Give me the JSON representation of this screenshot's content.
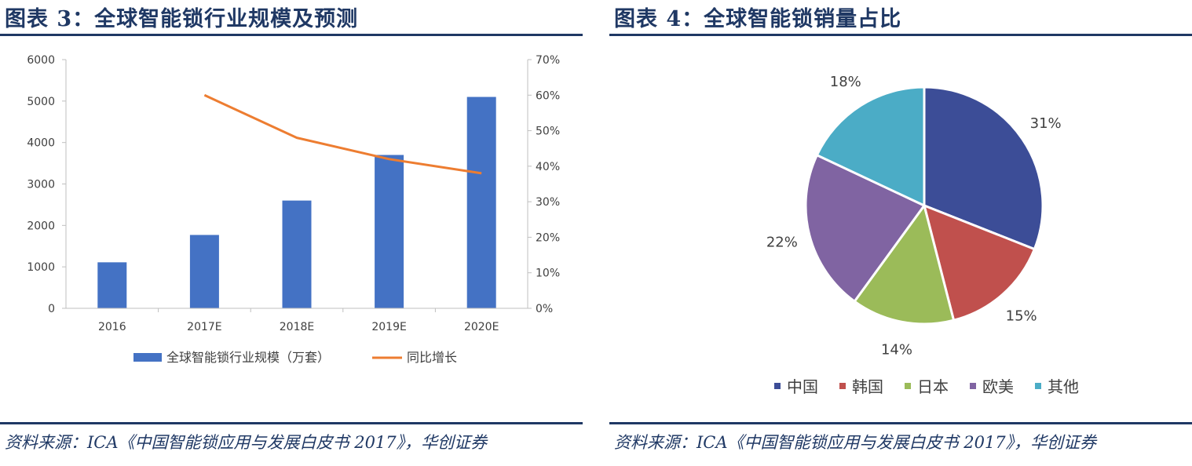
{
  "left": {
    "figure_title": "图表 3：全球智能锁行业规模及预测",
    "source": "资料来源：ICA《中国智能锁应用与发展白皮书 2017》，华创证券"
  },
  "right": {
    "figure_title": "图表 4：全球智能锁销量占比",
    "source": "资料来源：ICA《中国智能锁应用与发展白皮书 2017》，华创证券"
  },
  "chart_data": [
    {
      "type": "bar",
      "categories": [
        "2016",
        "2017E",
        "2018E",
        "2019E",
        "2020E"
      ],
      "series": [
        {
          "name": "全球智能锁行业规模（万套）",
          "kind": "bar",
          "axis": "left",
          "values": [
            1110,
            1770,
            2600,
            3700,
            5100
          ],
          "color": "#4472c4"
        },
        {
          "name": "同比增长",
          "kind": "line",
          "axis": "right",
          "values": [
            null,
            60,
            48,
            42,
            38
          ],
          "color": "#ed7d31"
        }
      ],
      "ylim": [
        0,
        6000
      ],
      "yticks": [
        "0",
        "1000",
        "2000",
        "3000",
        "4000",
        "5000",
        "6000"
      ],
      "y2lim": [
        0,
        70
      ],
      "y2ticks": [
        "0%",
        "10%",
        "20%",
        "30%",
        "40%",
        "50%",
        "60%",
        "70%"
      ],
      "legend": "bottom",
      "grid": false
    },
    {
      "type": "pie",
      "labels": [
        "中国",
        "韩国",
        "日本",
        "欧美",
        "其他"
      ],
      "values": [
        31,
        15,
        14,
        22,
        18
      ],
      "value_labels": [
        "31%",
        "15%",
        "14%",
        "22%",
        "18%"
      ],
      "colors": [
        "#3c4d97",
        "#c0504d",
        "#9bbb59",
        "#8064a2",
        "#4bacc6"
      ],
      "legend": "bottom"
    }
  ]
}
